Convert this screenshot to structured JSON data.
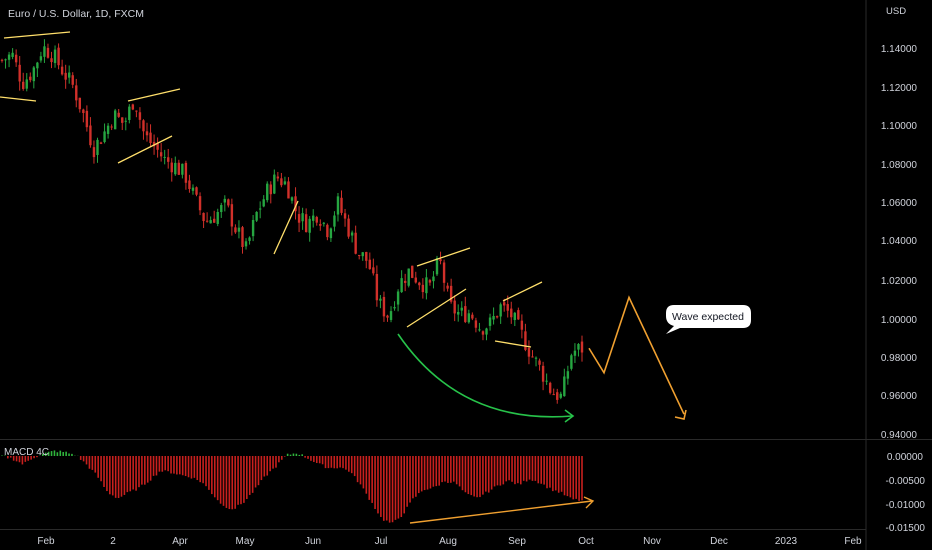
{
  "colors": {
    "background": "#000000",
    "up": "#26a641",
    "down": "#d1302a",
    "text": "#d1d4dc",
    "divider": "#2a2a2a",
    "pattern_line": "#ffdf6b",
    "arc": "#27c24a",
    "projection": "#f0a030",
    "macd_up": "#2fb53c",
    "macd_down": "#c8201e"
  },
  "chart_data": [
    {
      "type": "candlestick",
      "title": "Euro / U.S. Dollar, 1D, FXCM",
      "currency": "USD",
      "y_ticks": [
        "1.14000",
        "1.12000",
        "1.10000",
        "1.08000",
        "1.06000",
        "1.04000",
        "1.02000",
        "1.00000",
        "0.98000",
        "0.96000",
        "0.94000"
      ],
      "ylim": [
        0.94,
        1.145
      ],
      "x_ticks": [
        "Feb",
        "2",
        "Apr",
        "May",
        "Jun",
        "Jul",
        "Aug",
        "Sep",
        "Oct",
        "Nov",
        "Dec",
        "2023",
        "Feb"
      ],
      "close_path": [
        1.138,
        1.141,
        1.126,
        1.132,
        1.145,
        1.141,
        1.132,
        1.124,
        1.109,
        1.091,
        1.099,
        1.109,
        1.104,
        1.118,
        1.098,
        1.092,
        1.085,
        1.082,
        1.077,
        1.064,
        1.052,
        1.056,
        1.061,
        1.048,
        1.037,
        1.056,
        1.068,
        1.076,
        1.072,
        1.056,
        1.051,
        1.057,
        1.048,
        1.062,
        1.049,
        1.036,
        1.031,
        1.009,
        1.002,
        1.019,
        1.026,
        1.021,
        1.017,
        1.032,
        1.007,
        1.003,
        1.004,
        0.996,
        0.998,
        1.007,
        1.003,
        0.993,
        0.982,
        0.973,
        0.962,
        0.959,
        0.983,
        0.985
      ],
      "annotation": "Wave expected",
      "projection_path": [
        0.985,
        0.972,
        1.012,
        0.95
      ]
    },
    {
      "type": "bar",
      "title": "MACD 4C",
      "y_ticks": [
        "0.00000",
        "-0.00500",
        "-0.01000",
        "-0.01500"
      ],
      "ylim": [
        -0.0155,
        0.0015
      ],
      "histogram_path": [
        0.0,
        -0.0006,
        -0.0018,
        -0.0003,
        0.0005,
        0.0011,
        0.0008,
        0.0002,
        -0.0018,
        -0.0042,
        -0.0078,
        -0.0091,
        -0.0079,
        -0.0069,
        -0.0052,
        -0.0032,
        -0.0035,
        -0.0041,
        -0.0046,
        -0.0057,
        -0.0083,
        -0.0108,
        -0.0114,
        -0.0098,
        -0.0072,
        -0.0043,
        -0.0022,
        0.0002,
        0.0007,
        -0.0005,
        -0.0017,
        -0.0026,
        -0.0024,
        -0.0033,
        -0.0062,
        -0.0098,
        -0.0135,
        -0.0146,
        -0.0126,
        -0.0092,
        -0.0072,
        -0.0068,
        -0.0054,
        -0.0058,
        -0.0082,
        -0.0091,
        -0.0078,
        -0.0064,
        -0.0053,
        -0.0062,
        -0.0049,
        -0.0057,
        -0.0071,
        -0.0079,
        -0.0093,
        -0.0096
      ]
    }
  ]
}
